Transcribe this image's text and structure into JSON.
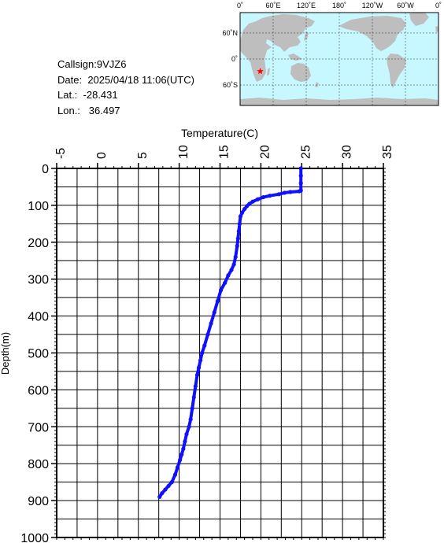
{
  "info": {
    "callsign_label": "Callsign:",
    "callsign": "9VJZ6",
    "date_label": "Date:",
    "date": "2025/04/18 11:06(UTC)",
    "lat_label": "Lat.:",
    "lat": "-28.431",
    "lon_label": "Lon.:",
    "lon": "36.497"
  },
  "map": {
    "top_labels": [
      "0˚",
      "60˚E",
      "120˚E",
      "180˚",
      "120˚W",
      "60˚W",
      "0˚"
    ],
    "side_labels": [
      "60˚N",
      "0˚",
      "60˚S"
    ],
    "ocean_color": "#c8f8ff",
    "land_color": "#bebebe",
    "marker_color": "#ff0000",
    "marker": {
      "lon": 36.497,
      "lat": -28.431
    }
  },
  "chart_data": {
    "type": "line",
    "title": "",
    "xlabel": "Temperature(C)",
    "ylabel": "Depth(m)",
    "x_axis_position": "top",
    "y_axis_inverted": true,
    "xlim": [
      -5,
      35
    ],
    "ylim": [
      0,
      1000
    ],
    "xticks": [
      "-5",
      "0",
      "5",
      "10",
      "15",
      "20",
      "25",
      "30",
      "35"
    ],
    "yticks": [
      "0",
      "100",
      "200",
      "300",
      "400",
      "500",
      "600",
      "700",
      "800",
      "900",
      "1000"
    ],
    "grid": true,
    "series_color": "#1010ff",
    "series": [
      {
        "temperature": [
          24.9,
          24.9,
          24.9,
          24.9,
          24.7,
          23.6,
          22.9,
          22.2,
          21.1,
          20.3,
          19.6,
          19.0,
          18.6,
          18.3,
          18.0,
          17.7,
          17.5,
          17.4,
          17.3,
          17.2,
          17.1,
          16.9,
          16.7,
          16.4,
          16.0,
          15.6,
          15.1,
          14.7,
          14.3,
          13.9,
          13.5,
          13.1,
          12.8,
          12.6,
          12.4,
          12.2,
          12.0,
          11.8,
          11.6,
          11.4,
          11.2,
          10.9,
          10.7,
          10.5,
          10.3,
          10.1,
          9.8,
          9.5,
          9.1,
          8.7,
          8.3,
          7.9,
          7.6
        ],
        "depth": [
          0,
          20,
          40,
          60,
          62,
          64,
          66,
          70,
          74,
          78,
          84,
          90,
          96,
          102,
          110,
          120,
          130,
          150,
          170,
          190,
          210,
          240,
          260,
          275,
          290,
          310,
          330,
          360,
          390,
          420,
          450,
          480,
          500,
          520,
          540,
          560,
          590,
          620,
          650,
          680,
          700,
          720,
          740,
          760,
          775,
          790,
          810,
          830,
          850,
          860,
          870,
          880,
          890
        ]
      }
    ]
  }
}
